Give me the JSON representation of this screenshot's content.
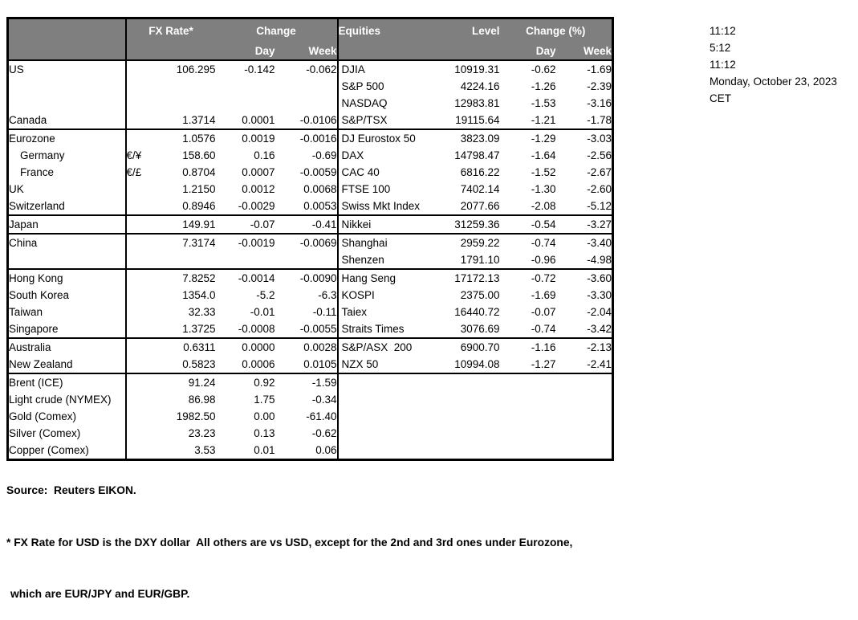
{
  "colors": {
    "header_bg": "#7f7f7f",
    "header_text": "#ffffff",
    "border": "#000000",
    "body_text": "#000000",
    "background": "#ffffff"
  },
  "header": {
    "fx_rate": "FX Rate*",
    "change": "Change",
    "day": "Day",
    "week": "Week",
    "equities": "Equities",
    "level": "Level",
    "change_pct": "Change (%)"
  },
  "timestamps": [
    "11:12",
    "5:12",
    "11:12",
    "Monday, October 23, 2023",
    "CET"
  ],
  "notes": [
    "Source:  Reuters EIKON.",
    "* FX Rate for USD is the DXY dollar  All others are vs USD, except for the 2nd and 3rd ones under Eurozone,",
    "which are EUR/JPY and EUR/GBP."
  ],
  "rows": [
    {
      "label": "US",
      "pair": "",
      "fx": "106.295",
      "fx_day": "-0.142",
      "fx_week": "-0.062",
      "equity": "DJIA",
      "level": "10919.31",
      "eq_day": "-0.62",
      "eq_week": "-1.69"
    },
    {
      "label": "",
      "pair": "",
      "fx": "",
      "fx_day": "",
      "fx_week": "",
      "equity": "S&P 500",
      "level": "4224.16",
      "eq_day": "-1.26",
      "eq_week": "-2.39"
    },
    {
      "label": "",
      "pair": "",
      "fx": "",
      "fx_day": "",
      "fx_week": "",
      "equity": "NASDAQ",
      "level": "12983.81",
      "eq_day": "-1.53",
      "eq_week": "-3.16"
    },
    {
      "label": "Canada",
      "pair": "",
      "fx": "1.3714",
      "fx_day": "0.0001",
      "fx_week": "-0.0106",
      "equity": "S&P/TSX",
      "level": "19115.64",
      "eq_day": "-1.21",
      "eq_week": "-1.78"
    },
    {
      "group_top": true,
      "label": "Eurozone",
      "pair": "",
      "fx": "1.0576",
      "fx_day": "0.0019",
      "fx_week": "-0.0016",
      "equity": "DJ Eurostox 50",
      "level": "3823.09",
      "eq_day": "-1.29",
      "eq_week": "-3.03"
    },
    {
      "label": "Germany",
      "indent": true,
      "pair": "€/¥",
      "fx": "158.60",
      "fx_day": "0.16",
      "fx_week": "-0.69",
      "equity": "DAX",
      "level": "14798.47",
      "eq_day": "-1.64",
      "eq_week": "-2.56"
    },
    {
      "label": "France",
      "indent": true,
      "pair": "€/£",
      "fx": "0.8704",
      "fx_day": "0.0007",
      "fx_week": "-0.0059",
      "equity": "CAC 40",
      "level": "6816.22",
      "eq_day": "-1.52",
      "eq_week": "-2.67"
    },
    {
      "label": "UK",
      "pair": "",
      "fx": "1.2150",
      "fx_day": "0.0012",
      "fx_week": "0.0068",
      "equity": "FTSE 100",
      "level": "7402.14",
      "eq_day": "-1.30",
      "eq_week": "-2.60"
    },
    {
      "label": "Switzerland",
      "pair": "",
      "fx": "0.8946",
      "fx_day": "-0.0029",
      "fx_week": "0.0053",
      "equity": "Swiss Mkt Index",
      "level": "2077.66",
      "eq_day": "-2.08",
      "eq_week": "-5.12"
    },
    {
      "group_top": true,
      "label": "Japan",
      "pair": "",
      "fx": "149.91",
      "fx_day": "-0.07",
      "fx_week": "-0.41",
      "equity": "Nikkei",
      "level": "31259.36",
      "eq_day": "-0.54",
      "eq_week": "-3.27"
    },
    {
      "group_top": true,
      "label": "China",
      "pair": "",
      "fx": "7.3174",
      "fx_day": "-0.0019",
      "fx_week": "-0.0069",
      "equity": "Shanghai",
      "level": "2959.22",
      "eq_day": "-0.74",
      "eq_week": "-3.40"
    },
    {
      "label": "",
      "pair": "",
      "fx": "",
      "fx_day": "",
      "fx_week": "",
      "equity": "Shenzen",
      "level": "1791.10",
      "eq_day": "-0.96",
      "eq_week": "-4.98"
    },
    {
      "group_top": true,
      "label": "Hong Kong",
      "pair": "",
      "fx": "7.8252",
      "fx_day": "-0.0014",
      "fx_week": "-0.0090",
      "equity": "Hang Seng",
      "level": "17172.13",
      "eq_day": "-0.72",
      "eq_week": "-3.60"
    },
    {
      "label": "South Korea",
      "pair": "",
      "fx": "1354.0",
      "fx_day": "-5.2",
      "fx_week": "-6.3",
      "equity": "KOSPI",
      "level": "2375.00",
      "eq_day": "-1.69",
      "eq_week": "-3.30"
    },
    {
      "label": "Taiwan",
      "pair": "",
      "fx": "32.33",
      "fx_day": "-0.01",
      "fx_week": "-0.11",
      "equity": "Taiex",
      "level": "16440.72",
      "eq_day": "-0.07",
      "eq_week": "-2.04"
    },
    {
      "label": "Singapore",
      "pair": "",
      "fx": "1.3725",
      "fx_day": "-0.0008",
      "fx_week": "-0.0055",
      "equity": "Straits Times",
      "level": "3076.69",
      "eq_day": "-0.74",
      "eq_week": "-3.42"
    },
    {
      "group_top": true,
      "label": "Australia",
      "pair": "",
      "fx": "0.6311",
      "fx_day": "0.0000",
      "fx_week": "0.0028",
      "equity": "S&P/ASX  200",
      "level": "6900.70",
      "eq_day": "-1.16",
      "eq_week": "-2.13"
    },
    {
      "label": "New Zealand",
      "pair": "",
      "fx": "0.5823",
      "fx_day": "0.0006",
      "fx_week": "0.0105",
      "equity": "NZX 50",
      "level": "10994.08",
      "eq_day": "-1.27",
      "eq_week": "-2.41"
    },
    {
      "group_top": true,
      "label": "Brent (ICE)",
      "pair": "",
      "fx": "91.24",
      "fx_day": "0.92",
      "fx_week": "-1.59",
      "equity": "",
      "level": "",
      "eq_day": "",
      "eq_week": ""
    },
    {
      "label": "Light crude (NYMEX)",
      "pair": "",
      "fx": "86.98",
      "fx_day": "1.75",
      "fx_week": "-0.34",
      "equity": "",
      "level": "",
      "eq_day": "",
      "eq_week": ""
    },
    {
      "label": "Gold (Comex)",
      "pair": "",
      "fx": "1982.50",
      "fx_day": "0.00",
      "fx_week": "-61.40",
      "equity": "",
      "level": "",
      "eq_day": "",
      "eq_week": ""
    },
    {
      "label": "Silver (Comex)",
      "pair": "",
      "fx": "23.23",
      "fx_day": "0.13",
      "fx_week": "-0.62",
      "equity": "",
      "level": "",
      "eq_day": "",
      "eq_week": ""
    },
    {
      "label": "Copper (Comex)",
      "pair": "",
      "fx": "3.53",
      "fx_day": "0.01",
      "fx_week": "0.06",
      "equity": "",
      "level": "",
      "eq_day": "",
      "eq_week": ""
    }
  ]
}
